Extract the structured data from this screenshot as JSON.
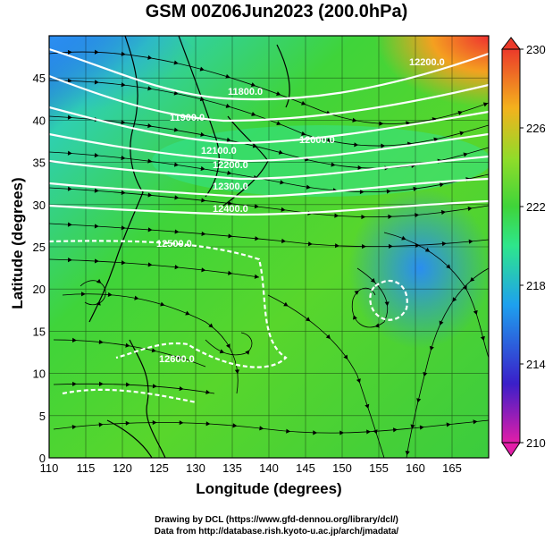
{
  "title": "GSM 00Z06Jun2023 (200.0hPa)",
  "axes": {
    "xlabel": "Longitude (degrees)",
    "ylabel": "Latitude (degrees)",
    "xticks": [
      "110",
      "115",
      "120",
      "125",
      "130",
      "135",
      "140",
      "145",
      "150",
      "155",
      "160",
      "165"
    ],
    "yticks": [
      "0",
      "5",
      "10",
      "15",
      "20",
      "25",
      "30",
      "35",
      "40",
      "45"
    ],
    "xlim": [
      110,
      170
    ],
    "ylim": [
      0,
      50
    ]
  },
  "colorbar": {
    "ticks": [
      "230",
      "226",
      "222",
      "218",
      "214",
      "210"
    ],
    "range": [
      210,
      230
    ],
    "colors": [
      "#e21ea8",
      "#3a1fc9",
      "#1ea0ee",
      "#2ee68c",
      "#3fd43a",
      "#8fdc2a",
      "#f3b21d",
      "#ec3a2a"
    ]
  },
  "contours": [
    "11800.0",
    "11900.0",
    "12000.0",
    "12100.0",
    "12200.0",
    "12300.0",
    "12400.0",
    "12500.0",
    "12600.0"
  ],
  "credits": [
    "Drawing by DCL (https://www.gfd-dennou.org/library/dcl/)",
    "Data from http://database.rish.kyoto-u.ac.jp/arch/jmadata/"
  ]
}
